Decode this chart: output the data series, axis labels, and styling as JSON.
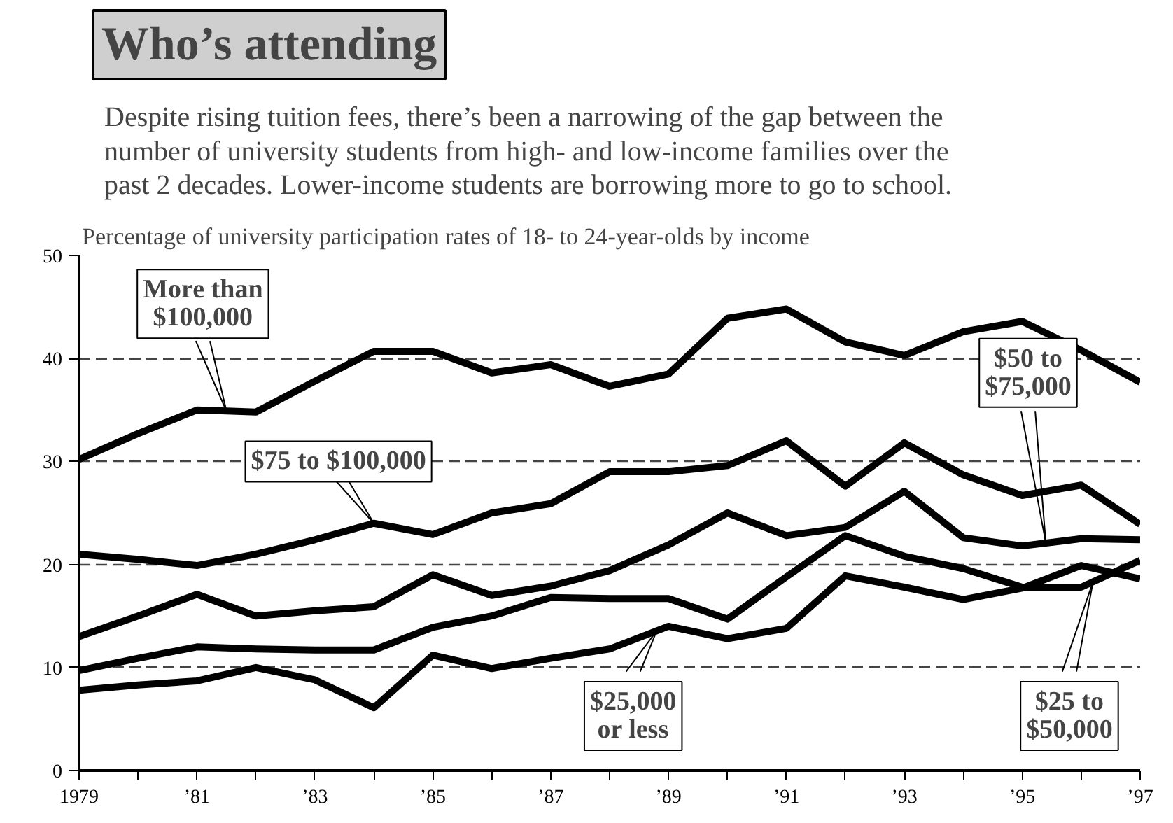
{
  "chart_data": {
    "type": "line",
    "title": "Who’s attending",
    "subtitle": "Despite rising tuition fees, there’s been a narrowing of the gap between the number of university students from high- and low-income families over the past 2 decades.  Lower-income students are borrowing more to go to school.",
    "ylabel": "Percentage of university participation rates of 18- to 24-year-olds by income",
    "x": [
      1979,
      1980,
      1981,
      1982,
      1983,
      1984,
      1985,
      1986,
      1987,
      1988,
      1989,
      1990,
      1991,
      1992,
      1993,
      1994,
      1995,
      1996,
      1997
    ],
    "series": [
      {
        "name": "More than $100,000",
        "color": "#000000",
        "values": [
          30.2,
          32.7,
          35.0,
          34.8,
          37.8,
          40.7,
          40.7,
          38.6,
          39.4,
          37.3,
          38.5,
          43.9,
          44.8,
          41.6,
          40.3,
          42.6,
          43.6,
          40.8,
          37.7
        ]
      },
      {
        "name": "$75 to $100,000",
        "color": "#000000",
        "values": [
          21.0,
          20.5,
          19.9,
          21.0,
          22.4,
          24.0,
          22.9,
          25.0,
          25.9,
          29.0,
          29.0,
          29.6,
          32.0,
          27.6,
          31.8,
          28.7,
          26.7,
          27.7,
          23.9
        ]
      },
      {
        "name": "$50 to $75,000",
        "color": "#000000",
        "values": [
          13.0,
          15.0,
          17.1,
          15.0,
          15.5,
          15.9,
          19.0,
          17.0,
          17.9,
          19.4,
          21.9,
          25.0,
          22.8,
          23.6,
          27.1,
          22.6,
          21.8,
          22.5,
          22.4
        ]
      },
      {
        "name": "$25 to $50,000",
        "color": "#000000",
        "values": [
          9.7,
          10.9,
          12.0,
          11.8,
          11.7,
          11.7,
          13.9,
          15.0,
          16.8,
          16.7,
          16.7,
          14.7,
          18.8,
          22.8,
          20.8,
          19.6,
          17.8,
          17.8,
          20.4
        ]
      },
      {
        "name": "$25,000 or less",
        "color": "#000000",
        "values": [
          7.8,
          8.3,
          8.7,
          10.0,
          8.8,
          6.1,
          11.2,
          9.9,
          10.9,
          11.8,
          14.0,
          12.8,
          13.8,
          18.9,
          17.8,
          16.6,
          17.7,
          19.9,
          18.6
        ]
      }
    ],
    "xlim": [
      1979,
      1997
    ],
    "xticks": [
      {
        "value": 1979,
        "label": "1979"
      },
      {
        "value": 1980,
        "label": null
      },
      {
        "value": 1981,
        "label": "’81"
      },
      {
        "value": 1982,
        "label": null
      },
      {
        "value": 1983,
        "label": "’83"
      },
      {
        "value": 1984,
        "label": null
      },
      {
        "value": 1985,
        "label": "’85"
      },
      {
        "value": 1986,
        "label": null
      },
      {
        "value": 1987,
        "label": "’87"
      },
      {
        "value": 1988,
        "label": null
      },
      {
        "value": 1989,
        "label": "’89"
      },
      {
        "value": 1990,
        "label": null
      },
      {
        "value": 1991,
        "label": "’91"
      },
      {
        "value": 1992,
        "label": null
      },
      {
        "value": 1993,
        "label": "’93"
      },
      {
        "value": 1994,
        "label": null
      },
      {
        "value": 1995,
        "label": "’95"
      },
      {
        "value": 1996,
        "label": null
      },
      {
        "value": 1997,
        "label": "’97"
      }
    ],
    "ylim": [
      0,
      50
    ],
    "yticks": [
      0,
      10,
      20,
      30,
      40,
      50
    ],
    "grid": "y",
    "marker": "none",
    "line_style": "solid"
  }
}
